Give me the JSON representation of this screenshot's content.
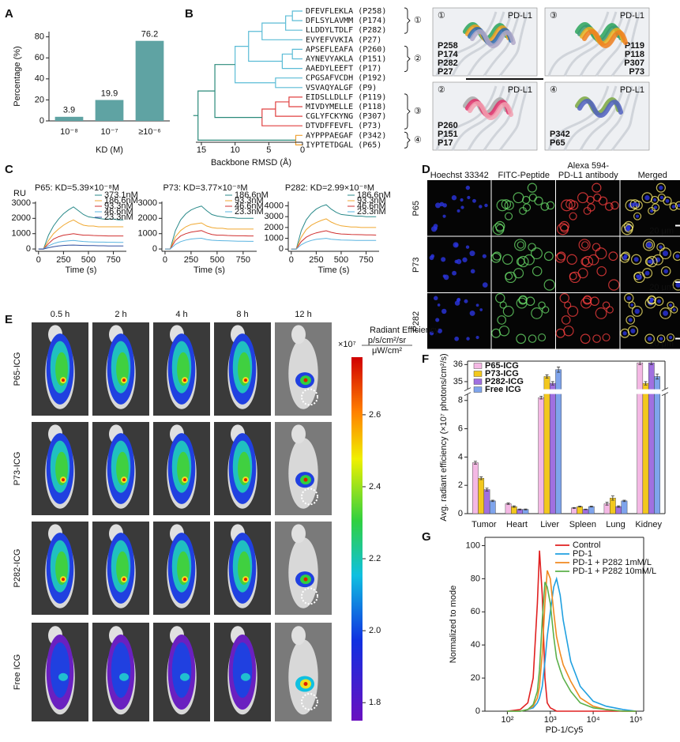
{
  "panel_labels": [
    "A",
    "B",
    "C",
    "D",
    "E",
    "F",
    "G"
  ],
  "chart_data": [
    {
      "type": "bar",
      "categories": [
        "10⁻⁸",
        "10⁻⁷",
        "≥10⁻⁶"
      ],
      "values": [
        3.9,
        19.9,
        76.2
      ],
      "color": "#5fa3a3",
      "y_label": "Percentage (%)",
      "x_label": "KD (M)",
      "ylim": [
        0,
        85
      ],
      "yticks": [
        0,
        20,
        40,
        60,
        80
      ]
    },
    {
      "type": "line",
      "title": "P65: KD=5.39×10⁻⁸M",
      "y_label": "RU",
      "x_label": "Time (s)",
      "x": [
        0,
        50,
        100,
        150,
        200,
        250,
        300,
        350,
        400,
        450,
        500,
        550,
        600,
        650,
        700,
        750,
        800,
        850
      ],
      "series": [
        {
          "name": "373.1nM",
          "color": "#2a8a8a",
          "values": [
            0,
            0,
            900,
            1500,
            1950,
            2300,
            2550,
            2750,
            2500,
            2250,
            2100,
            2050,
            2000,
            1950,
            1950,
            1950,
            1900,
            1900
          ]
        },
        {
          "name": "186.6nM",
          "color": "#f0a830",
          "values": [
            0,
            0,
            550,
            1000,
            1300,
            1550,
            1750,
            1900,
            1700,
            1550,
            1500,
            1500,
            1450,
            1450,
            1450,
            1450,
            1450,
            1450
          ]
        },
        {
          "name": "93.3nM",
          "color": "#d03030",
          "values": [
            0,
            0,
            350,
            650,
            800,
            900,
            950,
            1000,
            950,
            900,
            900,
            880,
            870,
            860,
            850,
            850,
            850,
            850
          ]
        },
        {
          "name": "46.6nM",
          "color": "#5ab4e0",
          "values": [
            0,
            0,
            200,
            350,
            450,
            500,
            530,
            560,
            520,
            490,
            470,
            460,
            450,
            450,
            440,
            440,
            430,
            430
          ]
        },
        {
          "name": "23.3nM",
          "color": "#3050a0",
          "values": [
            0,
            0,
            80,
            150,
            200,
            230,
            250,
            260,
            240,
            230,
            220,
            220,
            210,
            210,
            200,
            200,
            200,
            200
          ]
        }
      ],
      "xlim": [
        -30,
        880
      ],
      "xticks": [
        0,
        250,
        500,
        750
      ],
      "ylim": [
        -150,
        3100
      ],
      "yticks": [
        0,
        1000,
        2000,
        3000
      ]
    },
    {
      "type": "line",
      "title": "P73: KD=3.77×10⁻⁸M",
      "x_label": "Time (s)",
      "x": [
        0,
        50,
        100,
        150,
        200,
        250,
        300,
        350,
        400,
        450,
        500,
        550,
        600,
        650,
        700,
        750,
        800,
        850
      ],
      "series": [
        {
          "name": "186.6nM",
          "color": "#2a8a8a",
          "values": [
            0,
            0,
            1200,
            1900,
            2300,
            2550,
            2700,
            2800,
            2500,
            2250,
            2150,
            2100,
            2050,
            2050,
            2000,
            2000,
            2000,
            2000
          ]
        },
        {
          "name": "93.3nM",
          "color": "#f0a830",
          "values": [
            0,
            0,
            800,
            1200,
            1450,
            1600,
            1650,
            1700,
            1500,
            1400,
            1350,
            1350,
            1300,
            1300,
            1300,
            1300,
            1300,
            1300
          ]
        },
        {
          "name": "46.6nM",
          "color": "#d03030",
          "values": [
            0,
            0,
            550,
            850,
            1000,
            1100,
            1150,
            1200,
            1050,
            950,
            900,
            900,
            880,
            870,
            860,
            860,
            850,
            850
          ]
        },
        {
          "name": "23.3nM",
          "color": "#5ab4e0",
          "values": [
            0,
            0,
            300,
            480,
            580,
            650,
            680,
            700,
            620,
            570,
            550,
            540,
            530,
            520,
            510,
            510,
            500,
            500
          ]
        }
      ],
      "xlim": [
        -30,
        880
      ],
      "xticks": [
        0,
        250,
        500,
        750
      ],
      "ylim": [
        -150,
        3100
      ],
      "yticks": [
        0,
        1000,
        2000,
        3000
      ]
    },
    {
      "type": "line",
      "title": "P282: KD=2.99×10⁻⁸M",
      "x_label": "Time (s)",
      "x": [
        0,
        50,
        100,
        150,
        200,
        250,
        300,
        350,
        400,
        450,
        500,
        550,
        600,
        650,
        700,
        750,
        800,
        850
      ],
      "series": [
        {
          "name": "186.6nM",
          "color": "#2a8a8a",
          "values": [
            0,
            0,
            1700,
            2700,
            3300,
            3700,
            3950,
            4100,
            3700,
            3400,
            3200,
            3150,
            3100,
            3050,
            3050,
            3000,
            3000,
            3000
          ]
        },
        {
          "name": "93.3nM",
          "color": "#f0a830",
          "values": [
            0,
            0,
            1100,
            1800,
            2200,
            2450,
            2650,
            2800,
            2500,
            2300,
            2150,
            2100,
            2050,
            2050,
            2000,
            2000,
            2000,
            2000
          ]
        },
        {
          "name": "46.6nM",
          "color": "#d03030",
          "values": [
            0,
            0,
            700,
            1100,
            1350,
            1500,
            1600,
            1700,
            1550,
            1450,
            1400,
            1380,
            1350,
            1340,
            1330,
            1320,
            1310,
            1300
          ]
        },
        {
          "name": "23.3nM",
          "color": "#5ab4e0",
          "values": [
            0,
            0,
            400,
            650,
            800,
            900,
            950,
            1000,
            920,
            870,
            840,
            830,
            820,
            810,
            810,
            800,
            800,
            800
          ]
        }
      ],
      "xlim": [
        -30,
        880
      ],
      "xticks": [
        0,
        250,
        500,
        750
      ],
      "ylim": [
        -200,
        4400
      ],
      "yticks": [
        0,
        1000,
        2000,
        3000,
        4000
      ]
    },
    {
      "type": "bar",
      "y_label": "Avg. radiant efficiency (×10⁷ photons/cm²/s)",
      "categories": [
        "Tumor",
        "Heart",
        "Liver",
        "Spleen",
        "Lung",
        "Kidney"
      ],
      "series": [
        {
          "name": "P65-ICG",
          "color": "#f4b8e4",
          "values": [
            3.6,
            0.7,
            8.2,
            0.4,
            0.7,
            36.1
          ],
          "errors": [
            0.1,
            0.05,
            0.1,
            0.03,
            0.1,
            0.1
          ]
        },
        {
          "name": "P73-ICG",
          "color": "#f2c81e",
          "values": [
            2.5,
            0.5,
            35.3,
            0.5,
            1.1,
            34.9
          ],
          "errors": [
            0.1,
            0.05,
            0.1,
            0.03,
            0.15,
            0.1
          ]
        },
        {
          "name": "P282-ICG",
          "color": "#a070e0",
          "values": [
            1.7,
            0.3,
            34.9,
            0.3,
            0.5,
            36.1
          ],
          "errors": [
            0.1,
            0.03,
            0.1,
            0.02,
            0.05,
            0.1
          ]
        },
        {
          "name": "Free ICG",
          "color": "#7fa4ec",
          "values": [
            0.9,
            0.3,
            35.7,
            0.5,
            0.9,
            35.3
          ],
          "errors": [
            0.05,
            0.03,
            0.15,
            0.03,
            0.05,
            0.15
          ]
        }
      ],
      "ylim": [
        0,
        36.2
      ],
      "axis_break": [
        8.4,
        34.6
      ],
      "yticks": [
        0,
        2,
        4,
        6,
        8,
        35,
        36
      ]
    },
    {
      "type": "line",
      "log_x": true,
      "x_label": "PD-1/Cy5",
      "y_label": "Normalized to mode",
      "x": [
        100,
        200,
        300,
        400,
        500,
        560,
        650,
        750,
        850,
        1000,
        1200,
        1400,
        1700,
        2000,
        3000,
        5000,
        10000,
        20000,
        50000,
        100000
      ],
      "series": [
        {
          "name": "Control",
          "color": "#e02020",
          "values": [
            0,
            1,
            5,
            20,
            65,
            97,
            70,
            20,
            5,
            2,
            1,
            0,
            0,
            0,
            0,
            0,
            0,
            0,
            0,
            0
          ]
        },
        {
          "name": "PD-1",
          "color": "#20a0e0",
          "values": [
            0,
            0,
            1,
            2,
            5,
            8,
            15,
            30,
            45,
            60,
            75,
            80,
            70,
            55,
            30,
            15,
            6,
            3,
            1,
            0
          ]
        },
        {
          "name": "PD-1 + P282 1mM/L",
          "color": "#f08a20",
          "values": [
            0,
            0,
            1,
            3,
            8,
            15,
            35,
            65,
            85,
            80,
            60,
            45,
            35,
            28,
            18,
            8,
            3,
            1,
            0,
            0
          ]
        },
        {
          "name": "PD-1 + P282 10mM/L",
          "color": "#5cb04a",
          "values": [
            0,
            0,
            1,
            4,
            12,
            25,
            55,
            78,
            75,
            65,
            45,
            32,
            25,
            20,
            12,
            5,
            2,
            1,
            0,
            0
          ]
        }
      ],
      "xlim": [
        30,
        150000
      ],
      "xticks": [
        {
          "value": 100,
          "label": "10²"
        },
        {
          "value": 1000,
          "label": "10³"
        },
        {
          "value": 10000,
          "label": "10⁴"
        },
        {
          "value": 100000,
          "label": "10⁵"
        }
      ],
      "ylim": [
        0,
        105
      ],
      "yticks": [
        0,
        20,
        40,
        60,
        80,
        100
      ]
    }
  ],
  "panel_b": {
    "sequences": [
      "DFEVFLEKLA (P258)",
      "DFLSYLAVMM (P174)",
      "LLDDYLTDLF (P282)",
      "EVYEFVVKIA (P27)",
      "APSEFLEAFA (P260)",
      "AYNEVYAKLA (P151)",
      "AAEDYLEEFT (P17)",
      "CPGSAFVCDH (P192)",
      "VSVAQYALGF (P9)",
      "EIDSLLDLLF (P119)",
      "MIVDYMELLE (P118)",
      "CGLYFCKYNG (P307)",
      "DTVDFFEVFL (P73)",
      "AYPPPAEGAF (P342)",
      "IYPTETDGAL (P65)"
    ],
    "clusters": [
      "①",
      "②",
      "③",
      "④"
    ],
    "x_label": "Backbone RMSD (Å)",
    "rmsd_ticks": [
      15,
      10,
      5,
      0
    ],
    "structures": [
      {
        "cluster": "①",
        "target": "PD-L1",
        "peptides": [
          {
            "name": "P258",
            "color": "#2aa55a"
          },
          {
            "name": "P174",
            "color": "#f0a020"
          },
          {
            "name": "P282",
            "color": "#2a6ab0"
          },
          {
            "name": "P27",
            "color": "#b0a8c8"
          }
        ]
      },
      {
        "cluster": "③",
        "target": "PD-L1",
        "peptides": [
          {
            "name": "P119",
            "color": "#2aa55a"
          },
          {
            "name": "P118",
            "color": "#3a9a70"
          },
          {
            "name": "P307",
            "color": "#e8b020"
          },
          {
            "name": "P73",
            "color": "#f08020"
          }
        ]
      },
      {
        "cluster": "②",
        "target": "PD-L1",
        "peptides": [
          {
            "name": "P260",
            "color": "#a8a8a8"
          },
          {
            "name": "P151",
            "color": "#e0306a"
          },
          {
            "name": "P17",
            "color": "#f2a0b0"
          }
        ]
      },
      {
        "cluster": "④",
        "target": "PD-L1",
        "peptides": [
          {
            "name": "P342",
            "color": "#7aa840"
          },
          {
            "name": "P65",
            "color": "#5060c0"
          }
        ]
      }
    ]
  },
  "panel_d": {
    "columns": [
      [
        "Hoechst 33342"
      ],
      [
        "FITC-Peptide"
      ],
      [
        "Alexa 594-",
        "PD-L1 antibody"
      ],
      [
        "Merged"
      ]
    ],
    "rows": [
      "P65",
      "P73",
      "P282"
    ],
    "scale_bar": "20 μm"
  },
  "panel_e": {
    "times": [
      "0.5 h",
      "2 h",
      "4 h",
      "8 h",
      "12 h"
    ],
    "rows": [
      "P65-ICG",
      "P73-ICG",
      "P282-ICG",
      "Free ICG"
    ],
    "colorbar_title": "Radiant Efficiency",
    "colorbar_factor": "×10⁷",
    "colorbar_unit_num": "p/s/cm²/sr",
    "colorbar_unit_den": "μW/cm²",
    "colorbar_range": [
      1.75,
      2.76
    ],
    "colorbar_ticks": [
      {
        "value": 1.8,
        "label": "1.8"
      },
      {
        "value": 2,
        "label": "2.0"
      },
      {
        "value": 2.2,
        "label": "2.2"
      },
      {
        "value": 2.4,
        "label": "2.4"
      },
      {
        "value": 2.6,
        "label": "2.6"
      }
    ]
  }
}
